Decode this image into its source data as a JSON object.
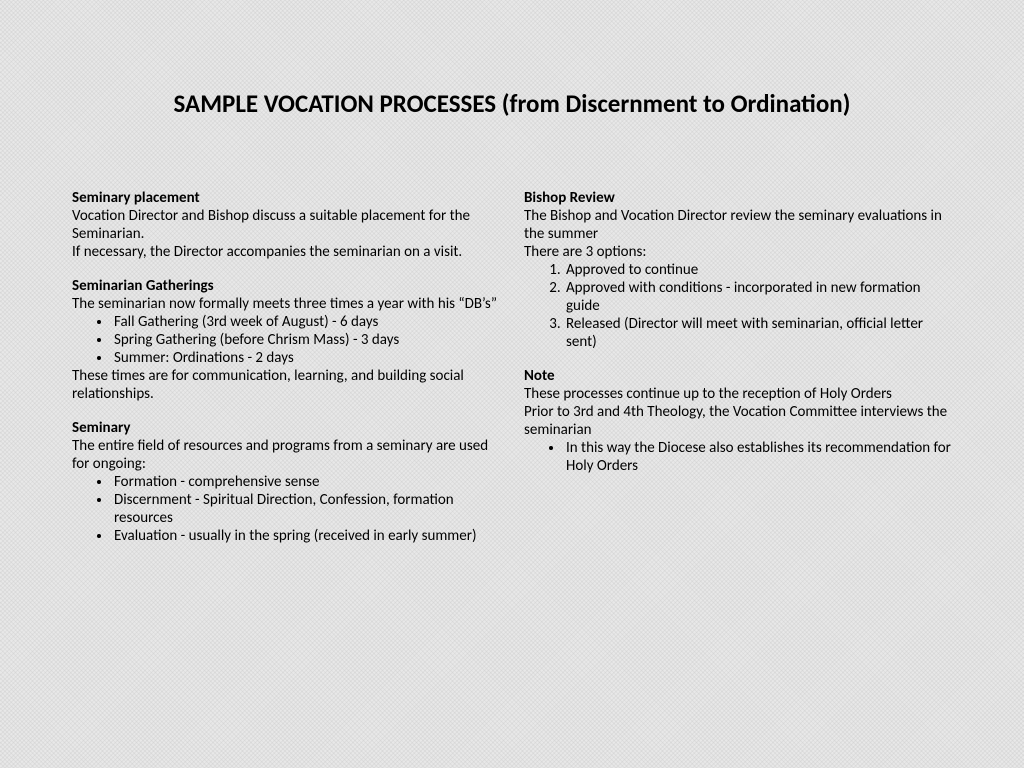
{
  "title": "SAMPLE VOCATION PROCESSES (from Discernment to Ordination)",
  "left": {
    "s1": {
      "head": "Seminary placement",
      "p1": "Vocation Director and Bishop discuss a suitable placement for the Seminarian.",
      "p2": "If necessary, the Director accompanies the seminarian on a visit."
    },
    "s2": {
      "head": "Seminarian Gatherings",
      "p1": "The seminarian now formally meets three times a year with his “DB’s”",
      "bullets": [
        "Fall Gathering (3rd week of August) - 6 days",
        "Spring Gathering (before Chrism Mass) - 3 days",
        "Summer:  Ordinations - 2 days"
      ],
      "p2": "These times are for communication, learning, and building social relationships."
    },
    "s3": {
      "head": "Seminary",
      "p1": "The entire field of resources and programs from a seminary are used for ongoing:",
      "bullets": [
        "Formation - comprehensive sense",
        "Discernment - Spiritual Direction, Confession, formation resources",
        "Evaluation - usually in the spring (received in early summer)"
      ]
    }
  },
  "right": {
    "s1": {
      "head": "Bishop Review",
      "p1": "The Bishop and Vocation Director review the seminary evaluations in the summer",
      "p2": "There are 3 options:",
      "numbers": [
        "Approved to continue",
        "Approved with conditions - incorporated in new formation guide",
        "Released (Director will meet with seminarian, official letter sent)"
      ]
    },
    "s2": {
      "head": "Note",
      "p1": "These processes continue up to the reception of Holy Orders",
      "p2": "Prior to 3rd and 4th Theology, the Vocation Committee interviews the seminarian",
      "bullets": [
        "In this way the Diocese also establishes its recommendation for Holy Orders"
      ]
    }
  }
}
